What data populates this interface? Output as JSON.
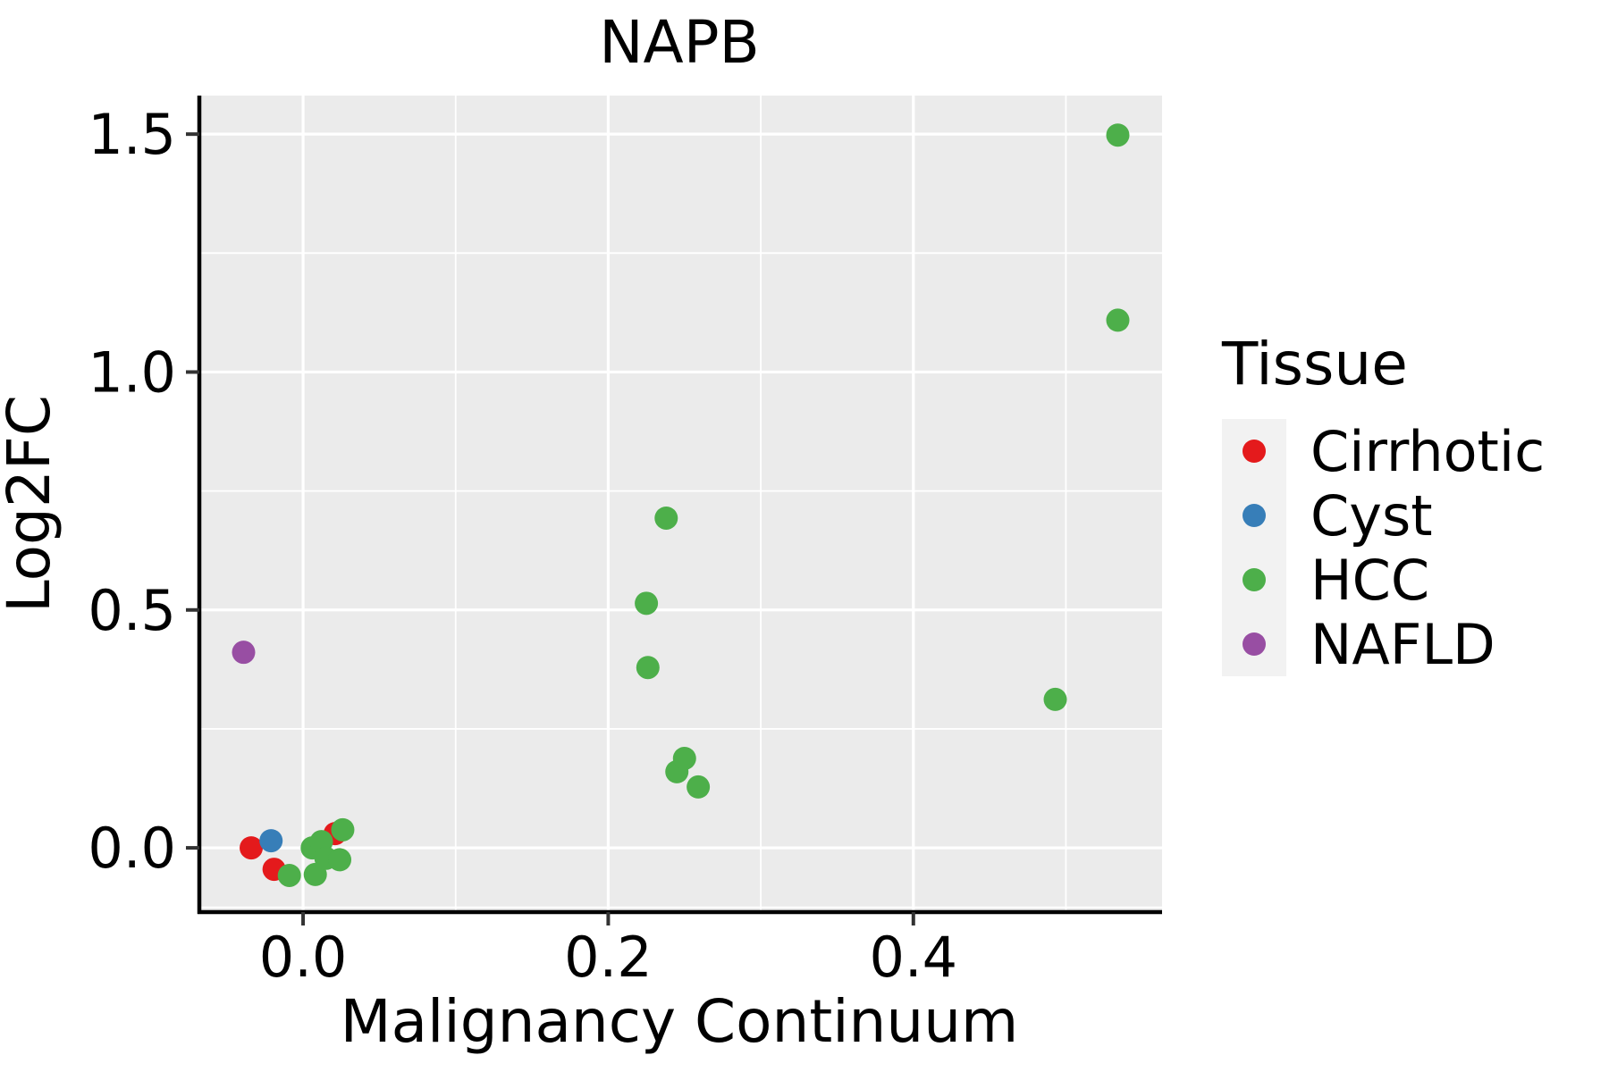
{
  "figure": {
    "background": "#ffffff"
  },
  "chart_data": {
    "type": "scatter",
    "title": "NAPB",
    "xlabel": "Malignancy Continuum",
    "ylabel": "Log2FC",
    "panel": {
      "background": "#EBEBEB",
      "grid_color": "#FFFFFF",
      "spine_color": "#000000",
      "tick_color": "#333333",
      "grid": "on"
    },
    "xlim": [
      -0.068,
      0.563
    ],
    "ylim": [
      -0.135,
      1.581
    ],
    "x_ticks": [
      {
        "value": 0.0,
        "label": "0.0"
      },
      {
        "value": 0.2,
        "label": "0.2"
      },
      {
        "value": 0.4,
        "label": "0.4"
      }
    ],
    "y_ticks": [
      {
        "value": 0.0,
        "label": "0.0"
      },
      {
        "value": 0.5,
        "label": "0.5"
      },
      {
        "value": 1.0,
        "label": "1.0"
      },
      {
        "value": 1.5,
        "label": "1.5"
      }
    ],
    "x_minor_ticks": [
      0.1,
      0.3,
      0.5
    ],
    "y_minor_ticks": [
      -0.125,
      0.25,
      0.75,
      1.25
    ],
    "point_radius_px": 13,
    "legend": {
      "title": "Tissue",
      "position": "right",
      "key_background": "#F2F2F2"
    },
    "series": [
      {
        "name": "Cirrhotic",
        "color": "#E41A1C",
        "points": [
          [
            -0.034,
            0.0
          ],
          [
            -0.019,
            -0.045
          ],
          [
            0.021,
            0.03
          ]
        ]
      },
      {
        "name": "Cyst",
        "color": "#377EB8",
        "points": [
          [
            -0.021,
            0.015
          ]
        ]
      },
      {
        "name": "HCC",
        "color": "#4DAF4A",
        "points": [
          [
            -0.009,
            -0.058
          ],
          [
            0.006,
            0.0
          ],
          [
            0.008,
            -0.056
          ],
          [
            0.012,
            0.013
          ],
          [
            0.015,
            -0.022
          ],
          [
            0.024,
            -0.025
          ],
          [
            0.026,
            0.038
          ],
          [
            0.225,
            0.514
          ],
          [
            0.226,
            0.379
          ],
          [
            0.238,
            0.693
          ],
          [
            0.245,
            0.16
          ],
          [
            0.25,
            0.188
          ],
          [
            0.259,
            0.128
          ],
          [
            0.493,
            0.312
          ],
          [
            0.534,
            1.109
          ],
          [
            0.534,
            1.498
          ]
        ]
      },
      {
        "name": "NAFLD",
        "color": "#984EA3",
        "points": [
          [
            -0.039,
            0.411
          ]
        ]
      }
    ]
  }
}
